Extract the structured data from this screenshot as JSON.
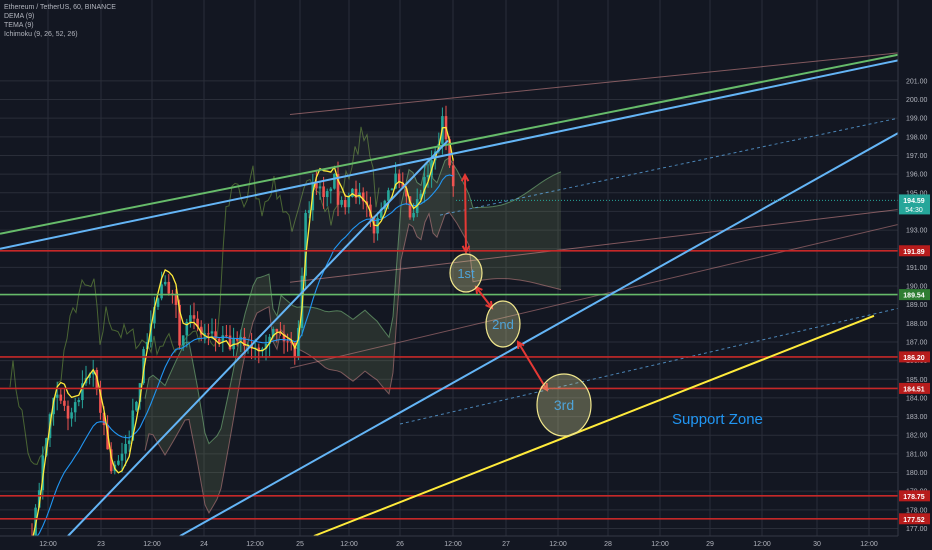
{
  "header": {
    "symbol": "Ethereum / TetherUS, 60, BINANCE",
    "indicators": [
      "DEMA (9)",
      "TEMA (9)",
      "Ichimoku (9, 26, 52, 26)"
    ]
  },
  "colors": {
    "background": "#131722",
    "grid": "#2a2e39",
    "candle_up": "#26a69a",
    "candle_down": "#ef5350",
    "dema": "#2196f3",
    "tema": "#ffeb3b",
    "support_line": "#c62828",
    "green_line": "#66bb6a",
    "trend_blue": "#64b5f6",
    "trend_yellow": "#ffeb3b",
    "annotation_red": "#e53935",
    "circle_fill": "#e6e6a0",
    "price_label_red": "#b71c1c",
    "price_label_green": "#2e7d32",
    "current_price_bg": "#26a69a",
    "support_text": "#2196f3"
  },
  "chart_data": {
    "type": "candlestick",
    "ylim": [
      176.5,
      201.2
    ],
    "y_ticks": [
      177.0,
      178.0,
      179.0,
      180.0,
      181.0,
      182.0,
      183.0,
      184.0,
      185.0,
      186.0,
      187.0,
      188.0,
      189.0,
      190.0,
      191.0,
      192.0,
      193.0,
      194.0,
      195.0,
      196.0,
      197.0,
      198.0,
      199.0,
      200.0,
      201.0
    ],
    "x_ticks": [
      "12:00",
      "23",
      "12:00",
      "24",
      "12:00",
      "25",
      "12:00",
      "26",
      "12:00",
      "27",
      "12:00",
      "28",
      "12:00",
      "29",
      "12:00",
      "30",
      "12:00"
    ],
    "horizontal_levels": [
      {
        "price": 191.89,
        "label": "191.89",
        "type": "resistance"
      },
      {
        "price": 189.54,
        "label": "189.54",
        "type": "green"
      },
      {
        "price": 186.2,
        "label": "186.20",
        "type": "support"
      },
      {
        "price": 184.51,
        "label": "184.51",
        "type": "support"
      },
      {
        "price": 178.75,
        "label": "178.75",
        "type": "support"
      },
      {
        "price": 177.52,
        "label": "177.52",
        "type": "support"
      }
    ],
    "current_price": {
      "price": 194.59,
      "label": "194.59",
      "countdown": "54:30"
    },
    "annotations": [
      "1st",
      "2nd",
      "3rd"
    ],
    "zone_label": "Support Zone"
  }
}
